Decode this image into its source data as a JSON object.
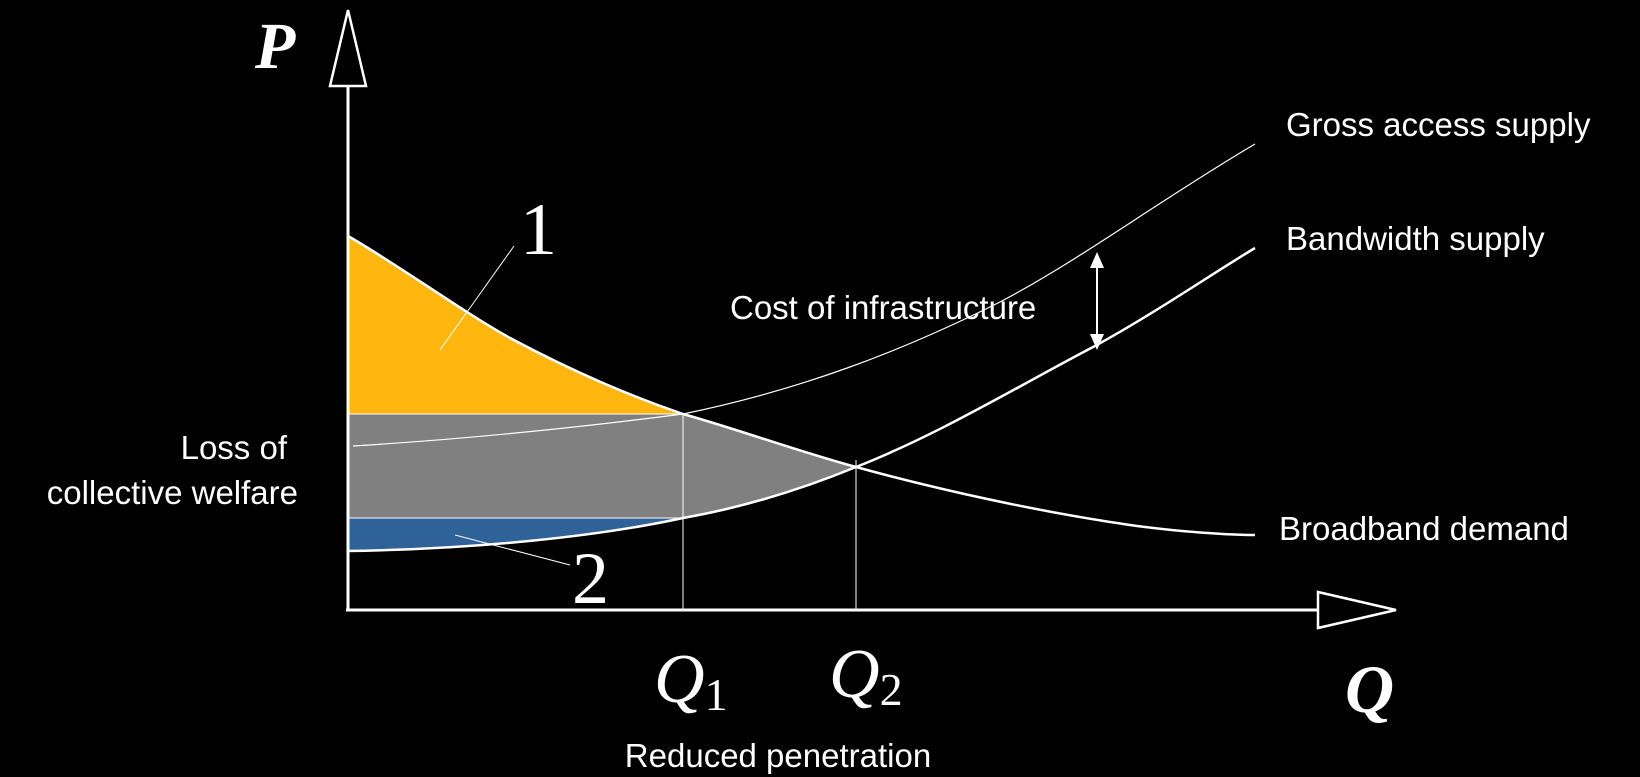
{
  "axes": {
    "y_label": "P",
    "x_label": "Q",
    "x_marks": [
      {
        "base": "Q",
        "sub": "1"
      },
      {
        "base": "Q",
        "sub": "2"
      }
    ]
  },
  "curves": {
    "gross_supply": "Gross access supply",
    "bandwidth_supply": "Bandwidth supply",
    "demand": "Broadband demand"
  },
  "annotations": {
    "cost": "Cost of infrastructure",
    "loss_line1": "Loss of",
    "loss_line2": "collective welfare",
    "region_1": "1",
    "region_2": "2",
    "reduced": "Reduced penetration"
  },
  "colors": {
    "background": "#000000",
    "region_1": "#FFB70F",
    "loss_area": "#808080",
    "region_2": "#2E6299",
    "lines": "#FFFFFF"
  }
}
